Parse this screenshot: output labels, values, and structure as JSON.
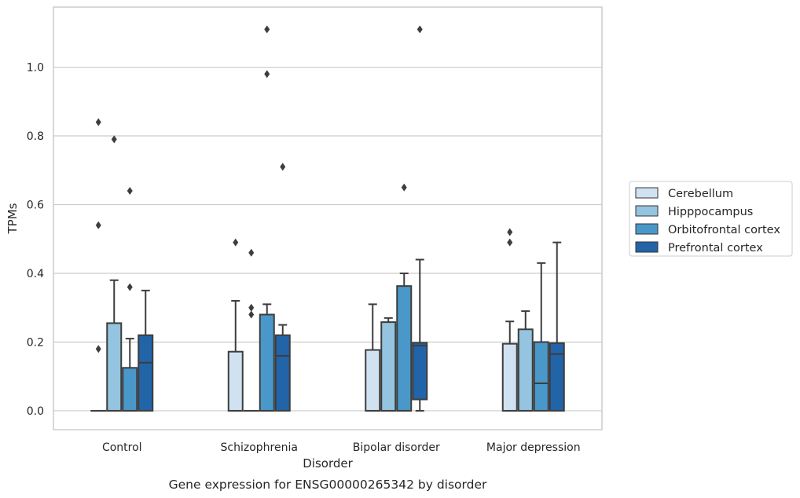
{
  "chart_data": {
    "type": "box",
    "categories": [
      "Control",
      "Schizophrenia",
      "Bipolar disorder",
      "Major depression"
    ],
    "xlabel": "Disorder",
    "ylabel": "TPMs",
    "caption": "Gene expression for ENSG00000265342 by disorder",
    "ylim": [
      -0.055,
      1.175
    ],
    "yticks": [
      0.0,
      0.2,
      0.4,
      0.6,
      0.8,
      1.0
    ],
    "ytick_labels": [
      "0.0",
      "0.2",
      "0.4",
      "0.6",
      "0.8",
      "1.0"
    ],
    "grid": "horizontal",
    "legend_position": "right",
    "series": [
      {
        "name": "Cerebellum",
        "color": "#d0e1f2",
        "boxes": [
          {
            "q1": 0.0,
            "median": 0.0,
            "q3": 0.0,
            "whisker_low": 0.0,
            "whisker_high": 0.0,
            "outliers": [
              0.18,
              0.54,
              0.84
            ]
          },
          {
            "q1": 0.0,
            "median": 0.0,
            "q3": 0.172,
            "whisker_low": 0.0,
            "whisker_high": 0.32,
            "outliers": [
              0.49
            ]
          },
          {
            "q1": 0.0,
            "median": 0.0,
            "q3": 0.177,
            "whisker_low": 0.0,
            "whisker_high": 0.31,
            "outliers": []
          },
          {
            "q1": 0.0,
            "median": 0.0,
            "q3": 0.195,
            "whisker_low": 0.0,
            "whisker_high": 0.26,
            "outliers": [
              0.49,
              0.52
            ]
          }
        ]
      },
      {
        "name": "Hipppocampus",
        "color": "#94c4df",
        "boxes": [
          {
            "q1": 0.0,
            "median": 0.0,
            "q3": 0.255,
            "whisker_low": 0.0,
            "whisker_high": 0.38,
            "outliers": [
              0.79
            ]
          },
          {
            "q1": 0.0,
            "median": 0.0,
            "q3": 0.0,
            "whisker_low": 0.0,
            "whisker_high": 0.0,
            "outliers": [
              0.28,
              0.3,
              0.46
            ]
          },
          {
            "q1": 0.0,
            "median": 0.0,
            "q3": 0.258,
            "whisker_low": 0.0,
            "whisker_high": 0.27,
            "outliers": []
          },
          {
            "q1": 0.0,
            "median": 0.0,
            "q3": 0.237,
            "whisker_low": 0.0,
            "whisker_high": 0.29,
            "outliers": []
          }
        ]
      },
      {
        "name": "Orbitofrontal cortex",
        "color": "#4a98c9",
        "boxes": [
          {
            "q1": 0.0,
            "median": 0.0,
            "q3": 0.125,
            "whisker_low": 0.0,
            "whisker_high": 0.21,
            "outliers": [
              0.36,
              0.64
            ]
          },
          {
            "q1": 0.0,
            "median": 0.0,
            "q3": 0.28,
            "whisker_low": 0.0,
            "whisker_high": 0.31,
            "outliers": [
              0.98,
              1.11
            ]
          },
          {
            "q1": 0.0,
            "median": 0.0,
            "q3": 0.363,
            "whisker_low": 0.0,
            "whisker_high": 0.4,
            "outliers": [
              0.65
            ]
          },
          {
            "q1": 0.0,
            "median": 0.08,
            "q3": 0.2,
            "whisker_low": 0.0,
            "whisker_high": 0.43,
            "outliers": []
          }
        ]
      },
      {
        "name": "Prefrontal cortex",
        "color": "#2264a8",
        "boxes": [
          {
            "q1": 0.0,
            "median": 0.14,
            "q3": 0.22,
            "whisker_low": 0.0,
            "whisker_high": 0.35,
            "outliers": []
          },
          {
            "q1": 0.0,
            "median": 0.16,
            "q3": 0.22,
            "whisker_low": 0.0,
            "whisker_high": 0.25,
            "outliers": [
              0.71
            ]
          },
          {
            "q1": 0.033,
            "median": 0.19,
            "q3": 0.198,
            "whisker_low": 0.0,
            "whisker_high": 0.44,
            "outliers": [
              1.11
            ]
          },
          {
            "q1": 0.0,
            "median": 0.165,
            "q3": 0.197,
            "whisker_low": 0.0,
            "whisker_high": 0.49,
            "outliers": []
          }
        ]
      }
    ]
  }
}
